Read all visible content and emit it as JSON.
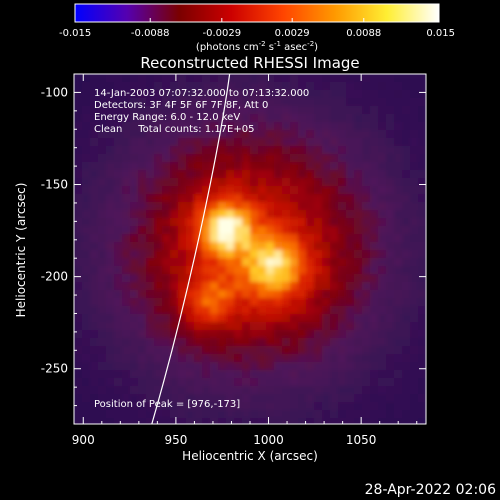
{
  "chart_data": {
    "type": "heatmap",
    "title": "Reconstructed RHESSI Image",
    "xlabel": "Heliocentric X (arcsec)",
    "ylabel": "Heliocentric Y (arcsec)",
    "xlim": [
      895,
      1085
    ],
    "ylim": [
      -280,
      -90
    ],
    "x_ticks": [
      900,
      950,
      1000,
      1050
    ],
    "y_ticks": [
      -100,
      -150,
      -200,
      -250
    ],
    "colorbar": {
      "colormap": "rhessi-hot (blue-purple-red-orange-yellow-white)",
      "range": [
        -0.015,
        0.015
      ],
      "ticks": [
        "-0.015",
        "-0.0088",
        "-0.0029",
        "0.0029",
        "0.0088",
        "0.015"
      ],
      "unit_label": "(photons cm^-2 s^-1 asec^-2)",
      "unit_parts": {
        "prefix": "(photons cm",
        "exp1": "-2",
        "mid1": " s",
        "exp2": "-1",
        "mid2": " asec",
        "exp3": "-2",
        "suffix": ")"
      },
      "colors": [
        "#0000ff",
        "#5500b0",
        "#7a0000",
        "#cc0000",
        "#ff4400",
        "#ff9900",
        "#ffee33",
        "#ffffff"
      ]
    },
    "annotations": [
      "14-Jan-2003 07:07:32.000 to 07:13:32.000",
      "Detectors: 3F 4F 5F 6F 7F 8F, Att 0",
      "Energy Range: 6.0 - 12.0 keV",
      "Clean     Total counts: 1.17E+05"
    ],
    "peak_label": "Position of Peak = [976,-173]",
    "sources": [
      {
        "x": 976,
        "y": -173,
        "intensity": 1.0,
        "radius": 11
      },
      {
        "x": 1003,
        "y": -195,
        "intensity": 0.85,
        "radius": 13
      },
      {
        "x": 968,
        "y": -213,
        "intensity": 0.62,
        "radius": 10
      }
    ],
    "limb_curve": [
      [
        937,
        -280
      ],
      [
        960,
        -200
      ],
      [
        975,
        -120
      ],
      [
        979,
        -90
      ]
    ]
  },
  "footer": {
    "timestamp": "28-Apr-2022 02:06"
  }
}
